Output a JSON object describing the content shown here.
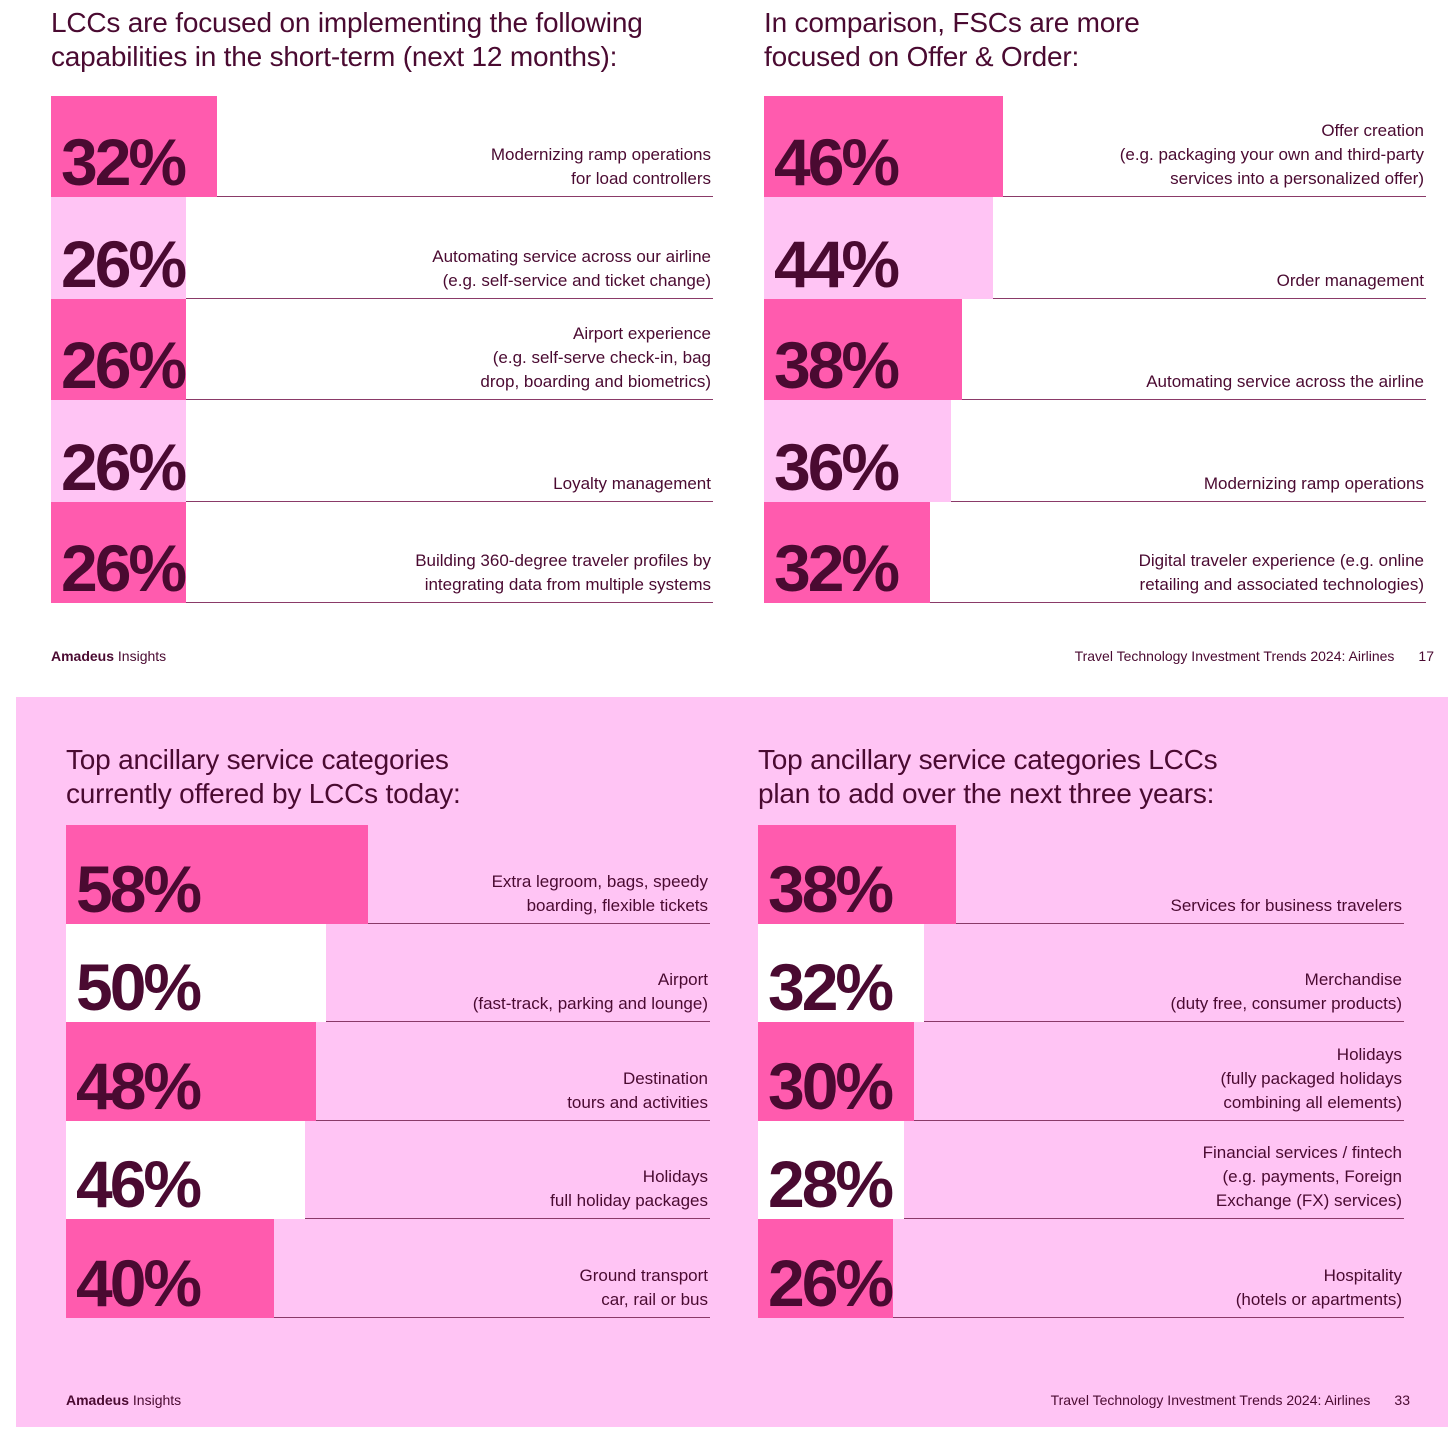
{
  "colors": {
    "hot_pink": "#ff5bae",
    "light_pink": "#ffc4f4",
    "white": "#ffffff",
    "plum": "#4a0a31"
  },
  "top_page": {
    "footer_brand": "Amadeus",
    "footer_brand_suffix": "Insights",
    "footer_title": "Travel Technology Investment Trends 2024: Airlines",
    "page_number": "17"
  },
  "bottom_page": {
    "footer_brand": "Amadeus",
    "footer_brand_suffix": "Insights",
    "footer_title": "Travel Technology Investment Trends 2024: Airlines",
    "page_number": "33"
  },
  "chart_data": [
    {
      "type": "bar",
      "orientation": "horizontal",
      "title": "LCCs are focused on implementing the following\ncapabilities in the short-term (next 12 months):",
      "unit": "%",
      "categories": [
        "Modernizing ramp operations\nfor load controllers",
        "Automating service across our airline\n(e.g. self-service and ticket change)",
        "Airport experience\n(e.g. self-serve check-in, bag\ndrop, boarding and biometrics)",
        "Loyalty management",
        "Building 360-degree traveler profiles by\nintegrating data from multiple systems"
      ],
      "values": [
        32,
        26,
        26,
        26,
        26
      ],
      "value_labels": [
        "32%",
        "26%",
        "26%",
        "26%",
        "26%"
      ],
      "bar_colors": [
        "#ff5bae",
        "#ffc4f4",
        "#ff5bae",
        "#ffc4f4",
        "#ff5bae"
      ]
    },
    {
      "type": "bar",
      "orientation": "horizontal",
      "title": "In comparison, FSCs are more\nfocused on Offer & Order:",
      "unit": "%",
      "categories": [
        "Offer creation\n(e.g. packaging your own and third-party\nservices into a personalized offer)",
        "Order management",
        "Automating service across the airline",
        "Modernizing ramp operations",
        "Digital traveler experience (e.g. online\nretailing and associated technologies)"
      ],
      "values": [
        46,
        44,
        38,
        36,
        32
      ],
      "value_labels": [
        "46%",
        "44%",
        "38%",
        "36%",
        "32%"
      ],
      "bar_colors": [
        "#ff5bae",
        "#ffc4f4",
        "#ff5bae",
        "#ffc4f4",
        "#ff5bae"
      ]
    },
    {
      "type": "bar",
      "orientation": "horizontal",
      "title": "Top ancillary service categories\ncurrently offered by LCCs today:",
      "unit": "%",
      "categories": [
        "Extra legroom, bags, speedy\nboarding, flexible tickets",
        "Airport\n(fast-track, parking and lounge)",
        "Destination\ntours and activities",
        "Holidays\nfull holiday packages",
        "Ground transport\ncar, rail or bus"
      ],
      "values": [
        58,
        50,
        48,
        46,
        40
      ],
      "value_labels": [
        "58%",
        "50%",
        "48%",
        "46%",
        "40%"
      ],
      "bar_colors": [
        "#ff5bae",
        "#ffffff",
        "#ff5bae",
        "#ffffff",
        "#ff5bae"
      ]
    },
    {
      "type": "bar",
      "orientation": "horizontal",
      "title": "Top ancillary service categories LCCs\nplan to add over the next three years:",
      "unit": "%",
      "categories": [
        "Services for business travelers",
        "Merchandise\n(duty free, consumer products)",
        "Holidays\n(fully packaged holidays\ncombining all elements)",
        "Financial services / fintech\n(e.g. payments, Foreign\nExchange (FX) services)",
        "Hospitality\n(hotels or apartments)"
      ],
      "values": [
        38,
        32,
        30,
        28,
        26
      ],
      "value_labels": [
        "38%",
        "32%",
        "30%",
        "28%",
        "26%"
      ],
      "bar_colors": [
        "#ff5bae",
        "#ffffff",
        "#ff5bae",
        "#ffffff",
        "#ff5bae"
      ]
    }
  ]
}
